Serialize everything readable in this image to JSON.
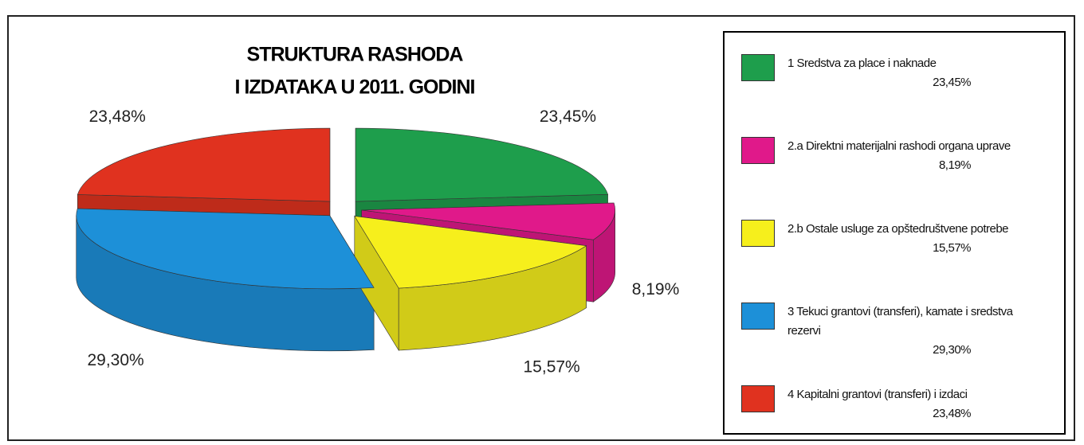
{
  "chart_data": {
    "type": "pie",
    "title": [
      "STRUKTURA RASHODA",
      "I IZDATAKA U 2011. GODINI"
    ],
    "categories": [
      "1 Sredstva za place i naknade",
      "2.a Direktni materijalni rashodi organa uprave",
      "2.b Ostale usluge za opštedruštvene potrebe",
      "3 Tekuci grantovi (transferi), kamate i sredstva rezervi",
      "4 Kapitalni grantovi (transferi) i izdaci"
    ],
    "values": [
      23.45,
      8.19,
      15.57,
      29.3,
      23.48
    ],
    "value_labels": [
      "23,45%",
      "8,19%",
      "15,57%",
      "29,30%",
      "23,48%"
    ],
    "colors": [
      "#1e9e4c",
      "#e0198a",
      "#f6ef1c",
      "#1d90d8",
      "#e0321f"
    ]
  }
}
